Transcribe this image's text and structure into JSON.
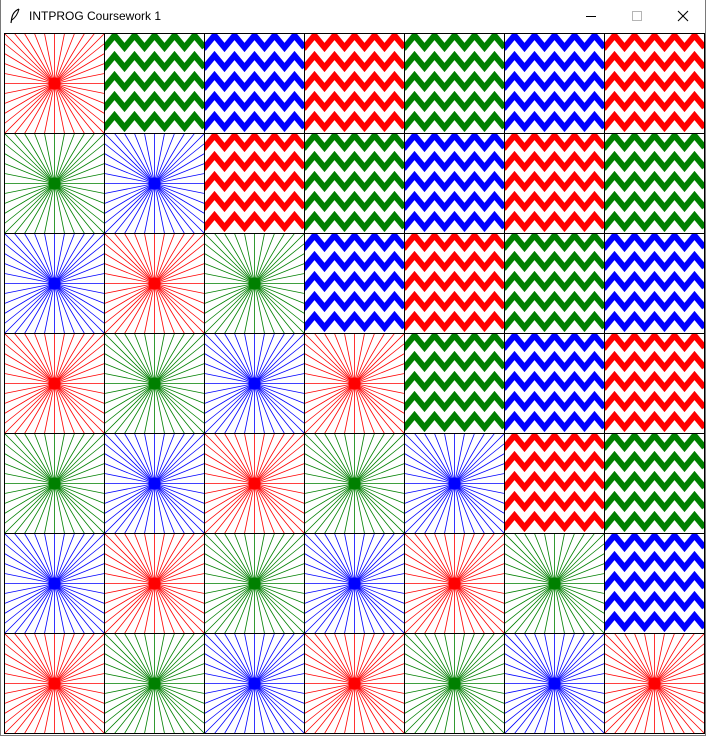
{
  "window": {
    "title": "INTPROG Coursework 1",
    "icon": "feather-icon",
    "controls": [
      "minimize-icon",
      "maximize-icon",
      "close-icon"
    ]
  },
  "colors": {
    "red": "#ff0000",
    "green": "#008000",
    "blue": "#0000ff",
    "grid": "#000000"
  },
  "patch_grid": {
    "rows": 7,
    "cols": 7,
    "patches": [
      [
        {
          "type": "burst",
          "color": "red"
        },
        {
          "type": "zigzag",
          "color": "green"
        },
        {
          "type": "zigzag",
          "color": "blue"
        },
        {
          "type": "zigzag",
          "color": "red"
        },
        {
          "type": "zigzag",
          "color": "green"
        },
        {
          "type": "zigzag",
          "color": "blue"
        },
        {
          "type": "zigzag",
          "color": "red"
        }
      ],
      [
        {
          "type": "burst",
          "color": "green"
        },
        {
          "type": "burst",
          "color": "blue"
        },
        {
          "type": "zigzag",
          "color": "red"
        },
        {
          "type": "zigzag",
          "color": "green"
        },
        {
          "type": "zigzag",
          "color": "blue"
        },
        {
          "type": "zigzag",
          "color": "red"
        },
        {
          "type": "zigzag",
          "color": "green"
        }
      ],
      [
        {
          "type": "burst",
          "color": "blue"
        },
        {
          "type": "burst",
          "color": "red"
        },
        {
          "type": "burst",
          "color": "green"
        },
        {
          "type": "zigzag",
          "color": "blue"
        },
        {
          "type": "zigzag",
          "color": "red"
        },
        {
          "type": "zigzag",
          "color": "green"
        },
        {
          "type": "zigzag",
          "color": "blue"
        }
      ],
      [
        {
          "type": "burst",
          "color": "red"
        },
        {
          "type": "burst",
          "color": "green"
        },
        {
          "type": "burst",
          "color": "blue"
        },
        {
          "type": "burst",
          "color": "red"
        },
        {
          "type": "zigzag",
          "color": "green"
        },
        {
          "type": "zigzag",
          "color": "blue"
        },
        {
          "type": "zigzag",
          "color": "red"
        }
      ],
      [
        {
          "type": "burst",
          "color": "green"
        },
        {
          "type": "burst",
          "color": "blue"
        },
        {
          "type": "burst",
          "color": "red"
        },
        {
          "type": "burst",
          "color": "green"
        },
        {
          "type": "burst",
          "color": "blue"
        },
        {
          "type": "zigzag",
          "color": "red"
        },
        {
          "type": "zigzag",
          "color": "green"
        }
      ],
      [
        {
          "type": "burst",
          "color": "blue"
        },
        {
          "type": "burst",
          "color": "red"
        },
        {
          "type": "burst",
          "color": "green"
        },
        {
          "type": "burst",
          "color": "blue"
        },
        {
          "type": "burst",
          "color": "red"
        },
        {
          "type": "burst",
          "color": "green"
        },
        {
          "type": "zigzag",
          "color": "blue"
        }
      ],
      [
        {
          "type": "burst",
          "color": "red"
        },
        {
          "type": "burst",
          "color": "green"
        },
        {
          "type": "burst",
          "color": "blue"
        },
        {
          "type": "burst",
          "color": "red"
        },
        {
          "type": "burst",
          "color": "green"
        },
        {
          "type": "burst",
          "color": "blue"
        },
        {
          "type": "burst",
          "color": "red"
        }
      ]
    ]
  }
}
